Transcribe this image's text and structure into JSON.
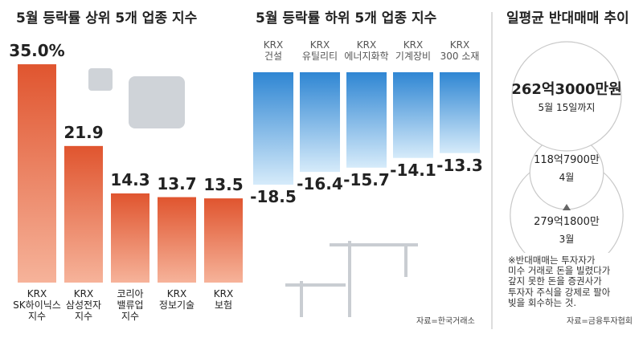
{
  "chart_data": [
    {
      "type": "bar",
      "title": "5월 등락률 상위 5개 업종 지수",
      "categories": [
        "KRX\nSK하이닉스\n지수",
        "KRX\n삼성전자\n지수",
        "코리아\n밸류업\n지수",
        "KRX\n정보기술",
        "KRX\n보험"
      ],
      "values": [
        35.0,
        21.9,
        14.3,
        13.7,
        13.5
      ],
      "value_labels": [
        "35.0%",
        "21.9",
        "14.3",
        "13.7",
        "13.5"
      ],
      "color": "#e0552f"
    },
    {
      "type": "bar",
      "title": "5월 등락률 하위 5개 업종 지수",
      "categories": [
        "KRX\n건설",
        "KRX\n유틸리티",
        "KRX\n에너지화학",
        "KRX\n기계장비",
        "KRX\n300 소재"
      ],
      "values": [
        -18.5,
        -16.4,
        -15.7,
        -14.1,
        -13.3
      ],
      "color": "#3b8fd6",
      "source": "자료=한국거래소"
    },
    {
      "type": "circle",
      "title": "일평균 반대매매 추이",
      "categories": [
        "5월 15일까지",
        "4월",
        "3월"
      ],
      "values": [
        262.3,
        118.79,
        279.18
      ],
      "value_labels": [
        "262억3000만원",
        "118억7900만",
        "279억1800만"
      ],
      "note": "※반대매매는 투자자가\n미수 거래로 돈을 빌렸다가\n갚지 못한 돈을 증권사가\n투자자 주식을 강제로 팔아\n빚을 회수하는 것.",
      "source": "자료=금융투자협회"
    }
  ]
}
